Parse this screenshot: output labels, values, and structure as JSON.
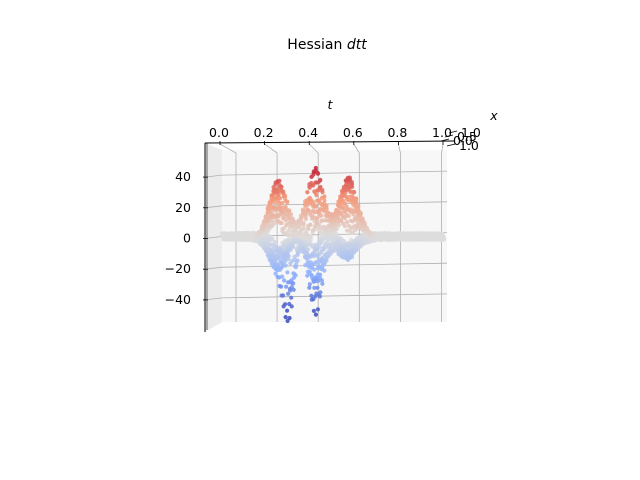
{
  "chart_data": {
    "type": "scatter",
    "projection": "3d",
    "title_prefix": "Hessian ",
    "title_italic": "dtt",
    "xlabel": "t",
    "ylabel": "x",
    "zlabel": "",
    "t_ticks": [
      "0.0",
      "0.2",
      "0.4",
      "0.6",
      "0.8",
      "1.0"
    ],
    "x_ticks": [
      "1.0",
      "0.5",
      "0.0",
      "1.0"
    ],
    "z_ticks": [
      "40",
      "20",
      "0",
      "−20",
      "−40"
    ],
    "t_range": [
      0,
      1
    ],
    "z_range": [
      -57,
      57
    ],
    "grid": true,
    "colormap": "coolwarm",
    "ridges": [
      {
        "t_center": 0.25,
        "t_spread": 0.05,
        "peak": 36,
        "trough": -22
      },
      {
        "t_center": 0.42,
        "t_spread": 0.04,
        "peak": 44,
        "trough": -30
      },
      {
        "t_center": 0.55,
        "t_spread": 0.045,
        "peak": 28,
        "trough": -12
      },
      {
        "t_center": 0.6,
        "t_spread": 0.04,
        "peak": 18,
        "trough": -6
      }
    ],
    "trough_extremes": [
      {
        "t_center": 0.3,
        "value": -47
      },
      {
        "t_center": 0.42,
        "value": -22
      }
    ]
  }
}
